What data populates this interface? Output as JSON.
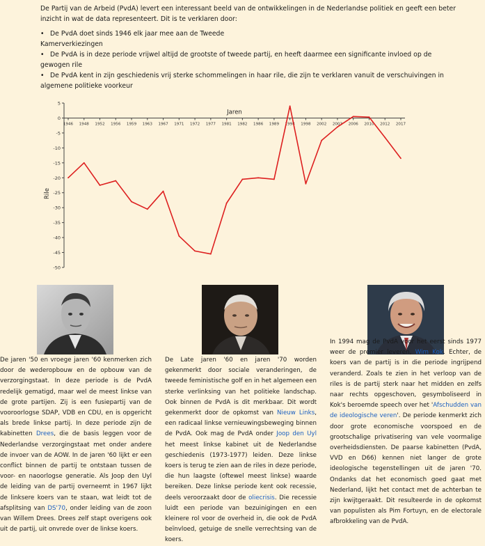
{
  "intro": {
    "paragraph": "De Partij van de Arbeid (PvdA) levert een interessant beeld van de ontwikkelingen in de Nederlandse politiek en geeft een beter inzicht in wat de data representeert. Dit is te verklaren door:",
    "bullets": [
      [
        "De PvdA doet sinds 1946 elk jaar mee aan de Tweede",
        "Kamerverkiezingen"
      ],
      [
        "De PvdA is in deze periode vrijwel altijd de grootste of tweede partij, en heeft daarmee een significante invloed op de",
        "gewogen rile"
      ],
      [
        "De PvdA kent in zijn geschiedenis vrij sterke schommelingen in haar rile, die zijn te verklaren vanuit de verschuivingen in",
        "algemene politieke voorkeur"
      ]
    ],
    "bullet_symbol": "•"
  },
  "chart_data": {
    "type": "line",
    "xlabel": "Jaren",
    "ylabel": "Rile",
    "ylim": [
      -50,
      5
    ],
    "yticks": [
      5,
      0,
      -5,
      -10,
      -15,
      -20,
      -25,
      -30,
      -35,
      -40,
      -45,
      -50
    ],
    "x": [
      "1946",
      "1948",
      "1952",
      "1956",
      "1959",
      "1963",
      "1967",
      "1971",
      "1972",
      "1977",
      "1981",
      "1982",
      "1986",
      "1989",
      "1994",
      "1998",
      "2002",
      "2003",
      "2006",
      "2010",
      "2012",
      "2017"
    ],
    "series": [
      {
        "color": "#dd1f1f",
        "values": [
          -20,
          -15,
          -22.5,
          -21,
          -28,
          -30.5,
          -24.5,
          -39.5,
          -44.5,
          -45.5,
          -28.5,
          -20.5,
          -20,
          -20.5,
          4,
          -22,
          -7.5,
          -3,
          0.5,
          0.3,
          -6.5,
          -13.5
        ]
      }
    ],
    "grid": false
  },
  "columns": [
    {
      "segments": [
        {
          "t": "De jaren '50 en vroege jaren '60 kenmerken zich door de wederopbouw en de opbouw van de verzorgingstaat. In deze periode is de PvdA redelijk gematigd, maar wel de meest linkse van de grote partijen. Zij is een fusiepartij van de vooroorlogse SDAP, VDB en CDU, en is opgericht als brede linkse partij. In deze periode zijn de kabinetten "
        },
        {
          "t": "Drees",
          "link": true
        },
        {
          "t": ", die de basis leggen voor de Nederlandse verzorgingstaat met onder andere de invoer van de AOW. In de jaren '60 lijkt er een conflict binnen de partij te ontstaan tussen de voor- en naoorlogse generatie. Als Joop den Uyl de leiding van de partij overneemt in 1967 lijkt de linksere koers van te staan, wat leidt tot de afsplitsing van "
        },
        {
          "t": "DS'70",
          "link": true
        },
        {
          "t": ", onder leiding van de zoon van Willem Drees. Drees zelf stapt overigens ook uit de partij, uit onvrede over de linkse koers."
        }
      ]
    },
    {
      "segments": [
        {
          "t": "De Late jaren '60 en jaren '70 worden gekenmerkt door sociale veranderingen, de tweede feministische golf en in het algemeen een sterke verlinksing van het politieke landschap. Ook binnen de PvdA is dit merkbaar. Dit wordt gekenmerkt door de opkomst van "
        },
        {
          "t": "Nieuw Links",
          "link": true
        },
        {
          "t": ", een radicaal linkse vernieuwingsbeweging binnen de PvdA. Ook mag de PvdA onder "
        },
        {
          "t": "Joop den Uyl",
          "link": true
        },
        {
          "t": " het meest linkse kabinet uit de Nederlandse geschiedenis (1973-1977) leiden. Deze linkse koers is terug te zien aan de riles in deze periode, die hun laagste (oftewel meest linkse) waarde bereiken. Deze linkse periode kent ook recessie, deels veroorzaakt door de "
        },
        {
          "t": "oliecrisis",
          "link": true
        },
        {
          "t": ". Die recessie luidt een periode van bezuinigingen en een kleinere rol voor de overheid in, die ook de PvdA beïnvloed, getuige de snelle verrechtsing van de koers."
        }
      ]
    },
    {
      "segments": [
        {
          "t": "In 1994 mag de PvdA voor het eerst sinds 1977 weer de premier leveren, "
        },
        {
          "t": "Wim Kok",
          "link": true
        },
        {
          "t": ". Echter, de koers van de partij is in die periode ingrijpend veranderd. Zoals te zien in het verloop van de riles is de partij sterk naar het midden en zelfs naar rechts opgeschoven, gesymboliseerd in Kok's beroemde speech over het '"
        },
        {
          "t": "Afschudden van de ideologische veren",
          "link": true
        },
        {
          "t": "'. De periode kenmerkt zich door grote economische voorspoed en de grootschalige privatisering van vele voormalige overheidsdiensten. De paarse kabinetten (PvdA, VVD en D66) kennen niet langer de grote ideologische tegenstellingen uit de jaren '70. Ondanks dat het economisch goed gaat met Nederland, lijkt het contact met de achterban te zijn kwijtgeraakt. Dit resulteerde in de opkomst van populisten als Pim Fortuyn, en de electorale afbrokkeling van de PvdA."
        }
      ]
    }
  ],
  "photos": [
    {
      "name": "portrait-photo-1"
    },
    {
      "name": "portrait-photo-2"
    },
    {
      "name": "portrait-photo-3"
    }
  ]
}
